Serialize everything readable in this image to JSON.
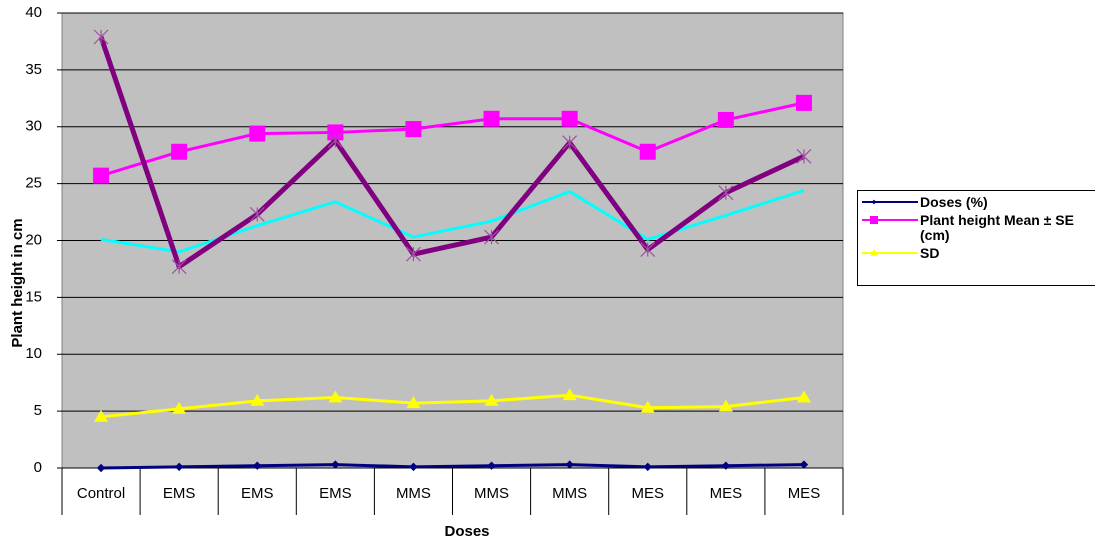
{
  "chart_data": {
    "type": "line",
    "x_label": "Doses",
    "y_label": "Plant height in cm",
    "categories": [
      "Control",
      "EMS",
      "EMS",
      "EMS",
      "MMS",
      "MMS",
      "MMS",
      "MES",
      "MES",
      "MES"
    ],
    "series": [
      {
        "name": "Doses (%)",
        "color": "#000080",
        "marker": "diamond",
        "values": [
          0,
          0.1,
          0.2,
          0.3,
          0.1,
          0.2,
          0.3,
          0.1,
          0.2,
          0.3
        ]
      },
      {
        "name": "Plant height Mean ± SE (cm)",
        "color": "#ff00ff",
        "marker": "square",
        "values": [
          25.7,
          27.8,
          29.4,
          29.5,
          29.8,
          30.7,
          30.7,
          27.8,
          30.6,
          32.1
        ]
      },
      {
        "name": "SD",
        "color": "#ffff00",
        "marker": "triangle",
        "values": [
          4.5,
          5.2,
          5.9,
          6.2,
          5.7,
          5.9,
          6.4,
          5.3,
          5.4,
          6.2
        ]
      },
      {
        "color": "#00ffff",
        "marker": "none",
        "values": [
          20.1,
          19.0,
          21.3,
          23.4,
          20.3,
          21.7,
          24.3,
          20.1,
          22.2,
          24.4
        ]
      },
      {
        "color": "#800080",
        "marker": "star",
        "values": [
          37.9,
          17.7,
          22.3,
          28.8,
          18.8,
          20.3,
          28.6,
          19.2,
          24.2,
          27.4
        ]
      }
    ],
    "ylim": [
      0,
      40
    ],
    "yticks": [
      0,
      5,
      10,
      15,
      20,
      25,
      30,
      35,
      40
    ],
    "grid": true,
    "legend": "right"
  }
}
